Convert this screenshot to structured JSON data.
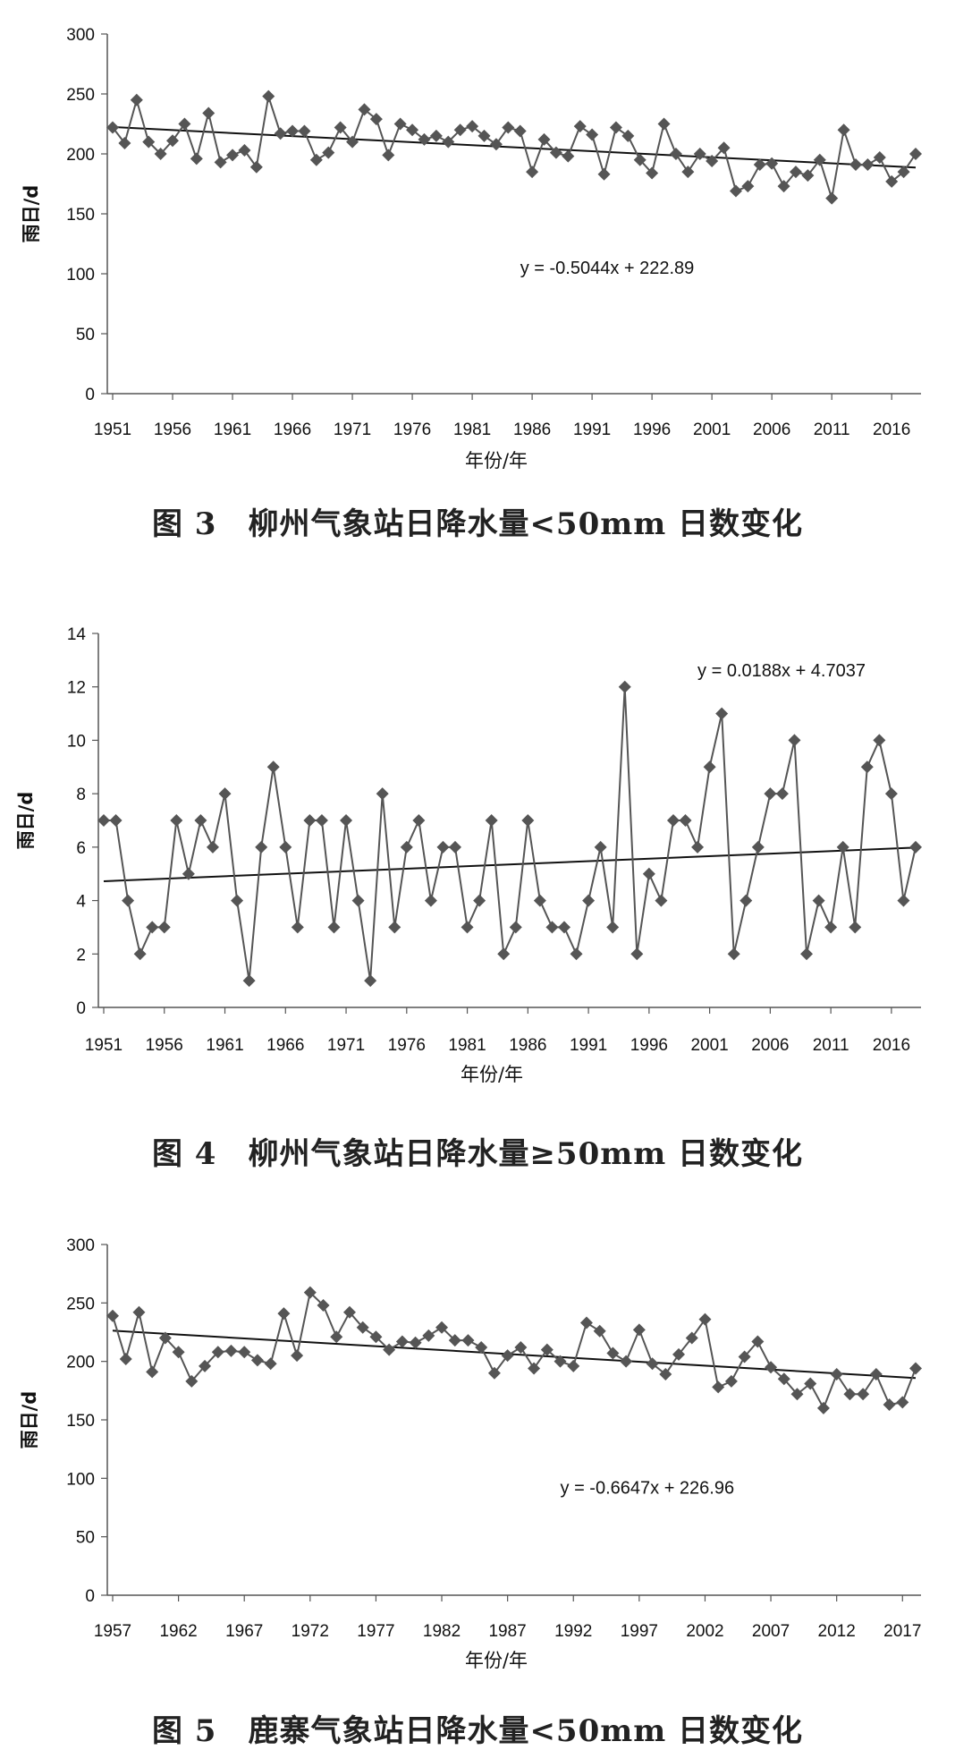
{
  "chart_data": [
    {
      "type": "line",
      "caption": "图 3　柳州气象站日降水量<50mm 日数变化",
      "xlabel": "年份/年",
      "ylabel": "雨日/d",
      "ylim": [
        0,
        300
      ],
      "yticks": [
        0,
        50,
        100,
        150,
        200,
        250,
        300
      ],
      "x_tick_labels": [
        "1951",
        "1956",
        "1961",
        "1966",
        "1971",
        "1976",
        "1981",
        "1986",
        "1991",
        "1996",
        "2001",
        "2006",
        "2011",
        "2016"
      ],
      "x_start": 1951,
      "x_end": 2018,
      "series": [
        {
          "x": [
            1951,
            1952,
            1953,
            1954,
            1955,
            1956,
            1957,
            1958,
            1959,
            1960,
            1961,
            1962,
            1963,
            1964,
            1965,
            1966,
            1967,
            1968,
            1969,
            1970,
            1971,
            1972,
            1973,
            1974,
            1975,
            1976,
            1977,
            1978,
            1979,
            1980,
            1981,
            1982,
            1983,
            1984,
            1985,
            1986,
            1987,
            1988,
            1989,
            1990,
            1991,
            1992,
            1993,
            1994,
            1995,
            1996,
            1997,
            1998,
            1999,
            2000,
            2001,
            2002,
            2003,
            2004,
            2005,
            2006,
            2007,
            2008,
            2009,
            2010,
            2011,
            2012,
            2013,
            2014,
            2015,
            2016,
            2017,
            2018
          ],
          "values": [
            222,
            209,
            245,
            210,
            200,
            211,
            225,
            196,
            234,
            193,
            199,
            203,
            189,
            248,
            217,
            219,
            219,
            195,
            201,
            222,
            210,
            237,
            229,
            199,
            225,
            220,
            212,
            215,
            210,
            220,
            223,
            215,
            208,
            222,
            219,
            185,
            212,
            201,
            198,
            223,
            216,
            183,
            222,
            215,
            195,
            184,
            225,
            200,
            185,
            200,
            194,
            205,
            169,
            173,
            191,
            192,
            173,
            185,
            182,
            195,
            163,
            220,
            191,
            191,
            197,
            177,
            185,
            200
          ]
        }
      ],
      "trendline": {
        "slope": -0.5044,
        "intercept": 222.89,
        "label": "y = -0.5044x + 222.89",
        "label_at": [
          1985,
          100
        ]
      }
    },
    {
      "type": "line",
      "caption": "图 4　柳州气象站日降水量≥50mm 日数变化",
      "xlabel": "年份/年",
      "ylabel": "雨日/d",
      "ylim": [
        0,
        14
      ],
      "yticks": [
        0,
        2,
        4,
        6,
        8,
        10,
        12,
        14
      ],
      "x_tick_labels": [
        "1951",
        "1956",
        "1961",
        "1966",
        "1971",
        "1976",
        "1981",
        "1986",
        "1991",
        "1996",
        "2001",
        "2006",
        "2011",
        "2016"
      ],
      "x_start": 1951,
      "x_end": 2018,
      "series": [
        {
          "x": [
            1951,
            1952,
            1953,
            1954,
            1955,
            1956,
            1957,
            1958,
            1959,
            1960,
            1961,
            1962,
            1963,
            1964,
            1965,
            1966,
            1967,
            1968,
            1969,
            1970,
            1971,
            1972,
            1973,
            1974,
            1975,
            1976,
            1977,
            1978,
            1979,
            1980,
            1981,
            1982,
            1983,
            1984,
            1985,
            1986,
            1987,
            1988,
            1989,
            1990,
            1991,
            1992,
            1993,
            1994,
            1995,
            1996,
            1997,
            1998,
            1999,
            2000,
            2001,
            2002,
            2003,
            2004,
            2005,
            2006,
            2007,
            2008,
            2009,
            2010,
            2011,
            2012,
            2013,
            2014,
            2015,
            2016,
            2017,
            2018
          ],
          "values": [
            7,
            7,
            4,
            2,
            3,
            3,
            7,
            5,
            7,
            6,
            8,
            4,
            1,
            6,
            9,
            6,
            3,
            7,
            7,
            3,
            7,
            4,
            1,
            8,
            3,
            6,
            7,
            4,
            6,
            6,
            3,
            4,
            7,
            2,
            3,
            7,
            4,
            3,
            3,
            2,
            4,
            6,
            3,
            12,
            2,
            5,
            4,
            7,
            7,
            6,
            9,
            11,
            2,
            4,
            6,
            8,
            8,
            10,
            2,
            4,
            3,
            6,
            3,
            9,
            10,
            8,
            4,
            6
          ]
        }
      ],
      "trendline": {
        "slope": 0.0188,
        "intercept": 4.7037,
        "label": "y = 0.0188x + 4.7037",
        "label_at": [
          2000,
          12.4
        ]
      }
    },
    {
      "type": "line",
      "caption": "图 5　鹿寨气象站日降水量<50mm 日数变化",
      "xlabel": "年份/年",
      "ylabel": "雨日/d",
      "ylim": [
        0,
        300
      ],
      "yticks": [
        0,
        50,
        100,
        150,
        200,
        250,
        300
      ],
      "x_tick_labels": [
        "1957",
        "1962",
        "1967",
        "1972",
        "1977",
        "1982",
        "1987",
        "1992",
        "1997",
        "2002",
        "2007",
        "2012",
        "2017"
      ],
      "x_start": 1957,
      "x_end": 2018,
      "series": [
        {
          "x": [
            1957,
            1958,
            1959,
            1960,
            1961,
            1962,
            1963,
            1964,
            1965,
            1966,
            1967,
            1968,
            1969,
            1970,
            1971,
            1972,
            1973,
            1974,
            1975,
            1976,
            1977,
            1978,
            1979,
            1980,
            1981,
            1982,
            1983,
            1984,
            1985,
            1986,
            1987,
            1988,
            1989,
            1990,
            1991,
            1992,
            1993,
            1994,
            1995,
            1996,
            1997,
            1998,
            1999,
            2000,
            2001,
            2002,
            2003,
            2004,
            2005,
            2006,
            2007,
            2008,
            2009,
            2010,
            2011,
            2012,
            2013,
            2014,
            2015,
            2016,
            2017,
            2018
          ],
          "values": [
            239,
            202,
            242,
            191,
            220,
            208,
            183,
            196,
            208,
            209,
            208,
            201,
            198,
            241,
            205,
            259,
            248,
            221,
            242,
            229,
            221,
            210,
            217,
            216,
            222,
            229,
            218,
            218,
            212,
            190,
            205,
            212,
            194,
            210,
            200,
            196,
            233,
            226,
            207,
            200,
            227,
            198,
            189,
            206,
            220,
            236,
            178,
            183,
            204,
            217,
            195,
            185,
            172,
            181,
            160,
            189,
            172,
            172,
            189,
            163,
            165,
            194
          ]
        }
      ],
      "trendline": {
        "slope": -0.6647,
        "intercept": 226.96,
        "label": "y = -0.6647x + 226.96",
        "label_at": [
          1991,
          87
        ]
      }
    }
  ]
}
